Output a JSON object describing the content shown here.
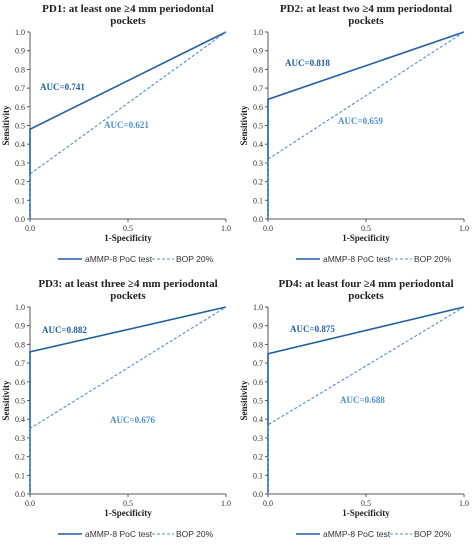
{
  "colors": {
    "solid": "#1f5fa8",
    "dashed": "#4d8fd1",
    "axis": "#595959"
  },
  "legend": {
    "solid": "aMMP-8 PoC test",
    "dashed": "BOP 20%"
  },
  "chart_data": [
    {
      "type": "line",
      "title": [
        "PD1: at least one ≥4 mm periodontal",
        "pockets"
      ],
      "xlabel": "1-Specificity",
      "ylabel": "Sensitivity",
      "xlim": [
        0,
        1
      ],
      "ylim": [
        0,
        1
      ],
      "yticks": [
        "0.0",
        "0.1",
        "0.2",
        "0.3",
        "0.4",
        "0.5",
        "0.6",
        "0.7",
        "0.8",
        "0.9",
        "1.0"
      ],
      "xticks": [
        "0.0",
        "0.5",
        "1.0"
      ],
      "series": [
        {
          "name": "aMMP-8 PoC test",
          "style": "solid",
          "x": [
            0,
            0,
            1
          ],
          "y": [
            0,
            0.48,
            1
          ],
          "auc_label": "AUC=0.741"
        },
        {
          "name": "BOP 20%",
          "style": "dashed",
          "x": [
            0,
            0,
            1
          ],
          "y": [
            0,
            0.24,
            1
          ],
          "auc_label": "AUC=0.621"
        }
      ]
    },
    {
      "type": "line",
      "title": [
        "PD2: at least two ≥4 mm periodontal",
        "pockets"
      ],
      "xlabel": "1-Specificity",
      "ylabel": "Sensitivity",
      "xlim": [
        0,
        1
      ],
      "ylim": [
        0,
        1
      ],
      "yticks": [
        "0.0",
        "0.1",
        "0.2",
        "0.3",
        "0.4",
        "0.5",
        "0.6",
        "0.7",
        "0.8",
        "0.9",
        "1.0"
      ],
      "xticks": [
        "0.0",
        "0.5",
        "1.0"
      ],
      "series": [
        {
          "name": "aMMP-8 PoC test",
          "style": "solid",
          "x": [
            0,
            0,
            1
          ],
          "y": [
            0,
            0.64,
            1
          ],
          "auc_label": "AUC=0.818"
        },
        {
          "name": "BOP 20%",
          "style": "dashed",
          "x": [
            0,
            0,
            1
          ],
          "y": [
            0,
            0.32,
            1
          ],
          "auc_label": "AUC=0.659"
        }
      ]
    },
    {
      "type": "line",
      "title": [
        "PD3: at least three ≥4 mm periodontal",
        "pockets"
      ],
      "xlabel": "1-Specificity",
      "ylabel": "Sensitivity",
      "xlim": [
        0,
        1
      ],
      "ylim": [
        0,
        1
      ],
      "yticks": [
        "0.0",
        "0.1",
        "0.2",
        "0.3",
        "0.4",
        "0.5",
        "0.6",
        "0.7",
        "0.8",
        "0.9",
        "1.0"
      ],
      "xticks": [
        "0.0",
        "0.5",
        "1.0"
      ],
      "series": [
        {
          "name": "aMMP-8 PoC test",
          "style": "solid",
          "x": [
            0,
            0,
            1
          ],
          "y": [
            0,
            0.76,
            1
          ],
          "auc_label": "AUC=0.882"
        },
        {
          "name": "BOP 20%",
          "style": "dashed",
          "x": [
            0,
            0,
            1
          ],
          "y": [
            0,
            0.35,
            1
          ],
          "auc_label": "AUC=0.676"
        }
      ]
    },
    {
      "type": "line",
      "title": [
        "PD4: at least four ≥4 mm periodontal",
        "pockets"
      ],
      "xlabel": "1-Specificity",
      "ylabel": "Sensitivity",
      "xlim": [
        0,
        1
      ],
      "ylim": [
        0,
        1
      ],
      "yticks": [
        "0.0",
        "0.1",
        "0.2",
        "0.3",
        "0.4",
        "0.5",
        "0.6",
        "0.7",
        "0.8",
        "0.9",
        "1.0"
      ],
      "xticks": [
        "0.0",
        "0.5",
        "1.0"
      ],
      "series": [
        {
          "name": "aMMP-8 PoC test",
          "style": "solid",
          "x": [
            0,
            0,
            1
          ],
          "y": [
            0,
            0.75,
            1
          ],
          "auc_label": "AUC=0.875"
        },
        {
          "name": "BOP 20%",
          "style": "dashed",
          "x": [
            0,
            0,
            1
          ],
          "y": [
            0,
            0.37,
            1
          ],
          "auc_label": "AUC=0.688"
        }
      ]
    }
  ]
}
